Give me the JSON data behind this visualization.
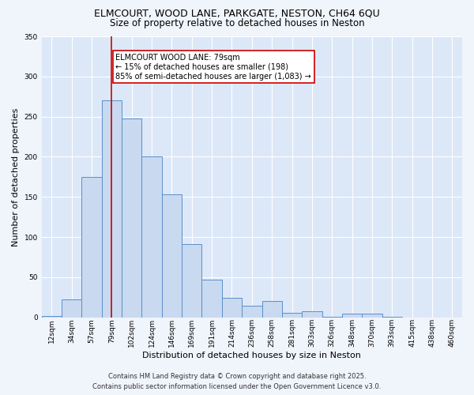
{
  "title_line1": "ELMCOURT, WOOD LANE, PARKGATE, NESTON, CH64 6QU",
  "title_line2": "Size of property relative to detached houses in Neston",
  "xlabel": "Distribution of detached houses by size in Neston",
  "ylabel": "Number of detached properties",
  "bar_labels": [
    "12sqm",
    "34sqm",
    "57sqm",
    "79sqm",
    "102sqm",
    "124sqm",
    "146sqm",
    "169sqm",
    "191sqm",
    "214sqm",
    "236sqm",
    "258sqm",
    "281sqm",
    "303sqm",
    "326sqm",
    "348sqm",
    "370sqm",
    "393sqm",
    "415sqm",
    "438sqm",
    "460sqm"
  ],
  "bar_values": [
    2,
    22,
    175,
    270,
    248,
    200,
    153,
    91,
    47,
    24,
    14,
    20,
    6,
    8,
    1,
    5,
    5,
    1,
    0,
    0,
    0
  ],
  "bar_color": "#c9d9f0",
  "bar_edge_color": "#5b8fc9",
  "vline_x_index": 3,
  "vline_color": "#cc0000",
  "annotation_text": "ELMCOURT WOOD LANE: 79sqm\n← 15% of detached houses are smaller (198)\n85% of semi-detached houses are larger (1,083) →",
  "annotation_box_color": "#ffffff",
  "annotation_box_edge": "#cc0000",
  "ylim": [
    0,
    350
  ],
  "yticks": [
    0,
    50,
    100,
    150,
    200,
    250,
    300,
    350
  ],
  "fig_bg_color": "#f0f4fb",
  "ax_bg_color": "#dce8f8",
  "grid_color": "#ffffff",
  "footer_line1": "Contains HM Land Registry data © Crown copyright and database right 2025.",
  "footer_line2": "Contains public sector information licensed under the Open Government Licence v3.0.",
  "title1_fontsize": 9,
  "title2_fontsize": 8.5,
  "xlabel_fontsize": 8,
  "ylabel_fontsize": 8,
  "tick_fontsize": 6.5,
  "annotation_fontsize": 7,
  "footer_fontsize": 6
}
